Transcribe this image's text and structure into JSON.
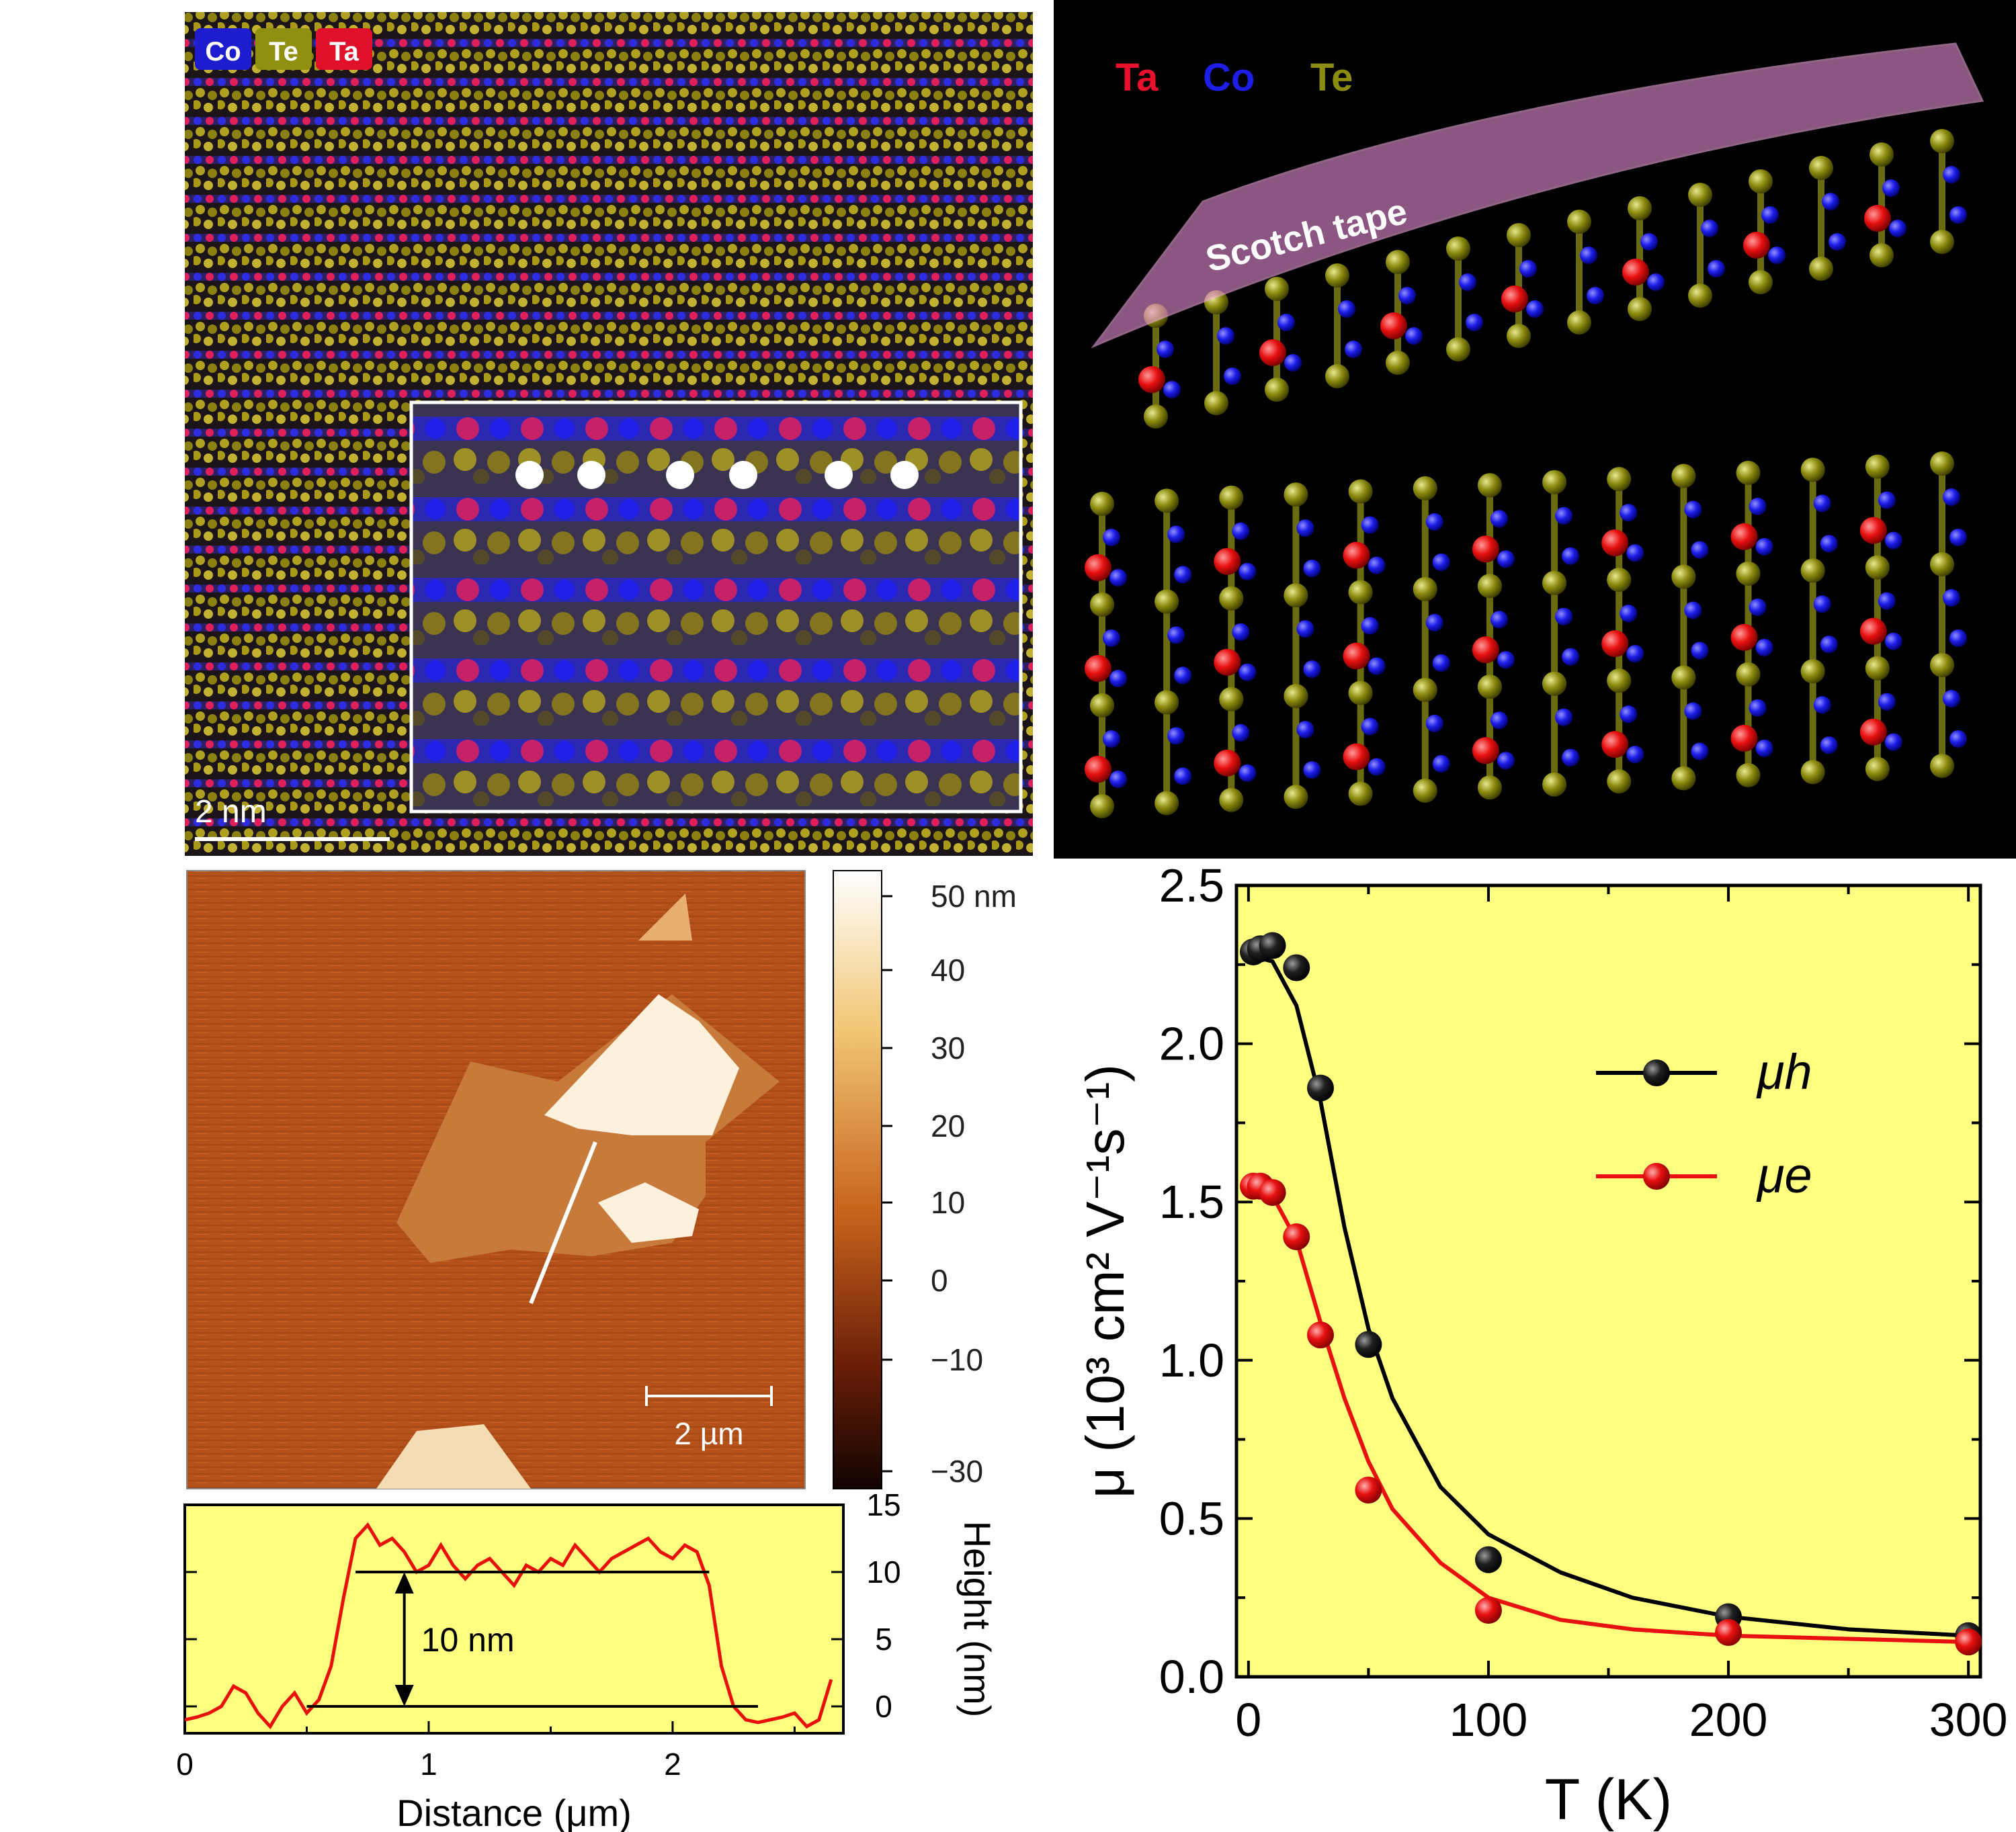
{
  "figure": {
    "stem": {
      "legend": [
        {
          "label": "Co",
          "color": "#1d1dcf"
        },
        {
          "label": "Te",
          "color": "#8f8f10"
        },
        {
          "label": "Ta",
          "color": "#e0102a"
        }
      ],
      "scale_bar": "2 nm"
    },
    "structure": {
      "legend": [
        {
          "label": "Ta",
          "color": "#e8102a"
        },
        {
          "label": "Co",
          "color": "#1d1de8"
        },
        {
          "label": "Te",
          "color": "#8c8c10"
        }
      ],
      "tape_label": "Scotch tape"
    },
    "afm": {
      "scale_bar": "2 µm",
      "colorbar_ticks": [
        "50 nm",
        "40",
        "30",
        "20",
        "10",
        "0",
        "−10",
        "−30"
      ]
    }
  },
  "chart_data": [
    {
      "type": "line",
      "id": "height-profile",
      "xlabel": "Distance (μm)",
      "ylabel": "Height (nm)",
      "xlim": [
        0,
        2.7
      ],
      "ylim": [
        -2,
        15
      ],
      "xticks": [
        0,
        1,
        2
      ],
      "yticks": [
        0,
        5,
        10,
        15
      ],
      "annotation": "10 nm",
      "reference_lines": [
        {
          "y": 10,
          "x": [
            0.7,
            2.15
          ]
        },
        {
          "y": 0,
          "x": [
            0.5,
            2.35
          ]
        }
      ],
      "series": [
        {
          "color": "#e8100a",
          "x": [
            0,
            0.05,
            0.1,
            0.15,
            0.2,
            0.25,
            0.3,
            0.35,
            0.4,
            0.45,
            0.5,
            0.55,
            0.6,
            0.65,
            0.7,
            0.75,
            0.8,
            0.85,
            0.9,
            0.95,
            1.0,
            1.05,
            1.1,
            1.15,
            1.2,
            1.25,
            1.3,
            1.35,
            1.4,
            1.45,
            1.5,
            1.55,
            1.6,
            1.65,
            1.7,
            1.75,
            1.8,
            1.85,
            1.9,
            1.95,
            2.0,
            2.05,
            2.1,
            2.15,
            2.2,
            2.25,
            2.3,
            2.35,
            2.4,
            2.45,
            2.5,
            2.55,
            2.6,
            2.65
          ],
          "y": [
            -1,
            -0.8,
            -0.5,
            0,
            1.5,
            1,
            -0.5,
            -1.5,
            0,
            1,
            -0.5,
            0.5,
            3,
            8,
            12.5,
            13.5,
            12,
            12.5,
            11.5,
            10,
            10.5,
            12,
            10.5,
            9.5,
            10.5,
            11,
            10,
            9,
            10.5,
            10,
            11,
            10.5,
            12,
            11,
            10,
            11,
            11.5,
            12,
            12.5,
            11.5,
            11,
            12,
            11.5,
            9,
            3,
            0,
            -1,
            -1.2,
            -1,
            -0.8,
            -0.5,
            -1.5,
            -1,
            2
          ]
        }
      ]
    },
    {
      "type": "line",
      "id": "mobility",
      "xlabel": "T (K)",
      "ylabel": "μ (10³ cm² V⁻¹s⁻¹)",
      "xlim": [
        -5,
        305
      ],
      "ylim": [
        0.0,
        2.5
      ],
      "xticks": [
        0,
        100,
        200,
        300
      ],
      "yticks": [
        0.0,
        0.5,
        1.0,
        1.5,
        2.0,
        2.5
      ],
      "ytick_labels": [
        "0.0",
        "0.5",
        "1.0",
        "1.5",
        "2.0",
        "2.5"
      ],
      "legend_position": "right",
      "series": [
        {
          "name": "μh",
          "color": "#000000",
          "points": {
            "x": [
              2,
              5,
              10,
              20,
              30,
              50,
              100,
              200,
              300
            ],
            "y": [
              2.29,
              2.3,
              2.31,
              2.24,
              1.86,
              1.05,
              0.37,
              0.19,
              0.13
            ]
          },
          "fit": {
            "x": [
              0,
              10,
              20,
              30,
              40,
              50,
              60,
              80,
              100,
              130,
              160,
              200,
              250,
              300
            ],
            "y": [
              2.28,
              2.26,
              2.12,
              1.82,
              1.42,
              1.1,
              0.88,
              0.6,
              0.45,
              0.33,
              0.25,
              0.19,
              0.15,
              0.13
            ]
          }
        },
        {
          "name": "μe",
          "color": "#e81010",
          "points": {
            "x": [
              2,
              5,
              10,
              20,
              30,
              50,
              100,
              200,
              300
            ],
            "y": [
              1.55,
              1.55,
              1.53,
              1.39,
              1.08,
              0.59,
              0.21,
              0.14,
              0.11
            ]
          },
          "fit": {
            "x": [
              0,
              10,
              20,
              30,
              40,
              50,
              60,
              80,
              100,
              130,
              160,
              200,
              250,
              300
            ],
            "y": [
              1.55,
              1.52,
              1.38,
              1.12,
              0.88,
              0.68,
              0.53,
              0.36,
              0.25,
              0.18,
              0.15,
              0.13,
              0.12,
              0.11
            ]
          }
        }
      ]
    }
  ]
}
